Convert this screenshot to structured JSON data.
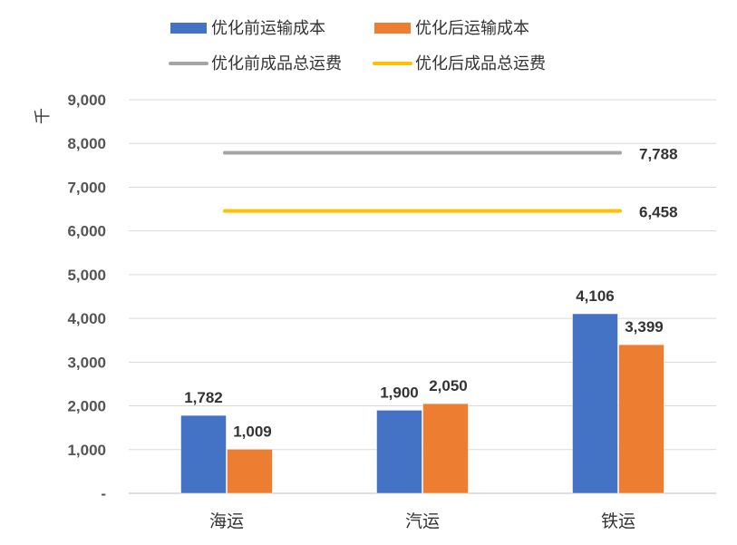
{
  "chart_data": {
    "type": "bar",
    "unit_label": "千",
    "categories": [
      "海运",
      "汽运",
      "铁运"
    ],
    "series": [
      {
        "name": "优化前运输成本",
        "values": [
          1782,
          1900,
          4106
        ],
        "color": "#4472C4",
        "labels": [
          "1,782",
          "1,900",
          "4,106"
        ]
      },
      {
        "name": "优化后运输成本",
        "values": [
          1009,
          2050,
          3399
        ],
        "color": "#ED7D31",
        "labels": [
          "1,009",
          "2,050",
          "3,399"
        ]
      }
    ],
    "lines": [
      {
        "name": "优化前成品总运费",
        "value": 7788,
        "color": "#A5A5A5",
        "label": "7,788"
      },
      {
        "name": "优化后成品总运费",
        "value": 6458,
        "color": "#FFC000",
        "label": "6,458"
      }
    ],
    "y_ticks": [
      {
        "value": 0,
        "label": "-"
      },
      {
        "value": 1000,
        "label": "1,000"
      },
      {
        "value": 2000,
        "label": "2,000"
      },
      {
        "value": 3000,
        "label": "3,000"
      },
      {
        "value": 4000,
        "label": "4,000"
      },
      {
        "value": 5000,
        "label": "5,000"
      },
      {
        "value": 6000,
        "label": "6,000"
      },
      {
        "value": 7000,
        "label": "7,000"
      },
      {
        "value": 8000,
        "label": "8,000"
      },
      {
        "value": 9000,
        "label": "9,000"
      }
    ],
    "ylim": [
      0,
      9000
    ],
    "grid": true,
    "legend_position": "top"
  }
}
